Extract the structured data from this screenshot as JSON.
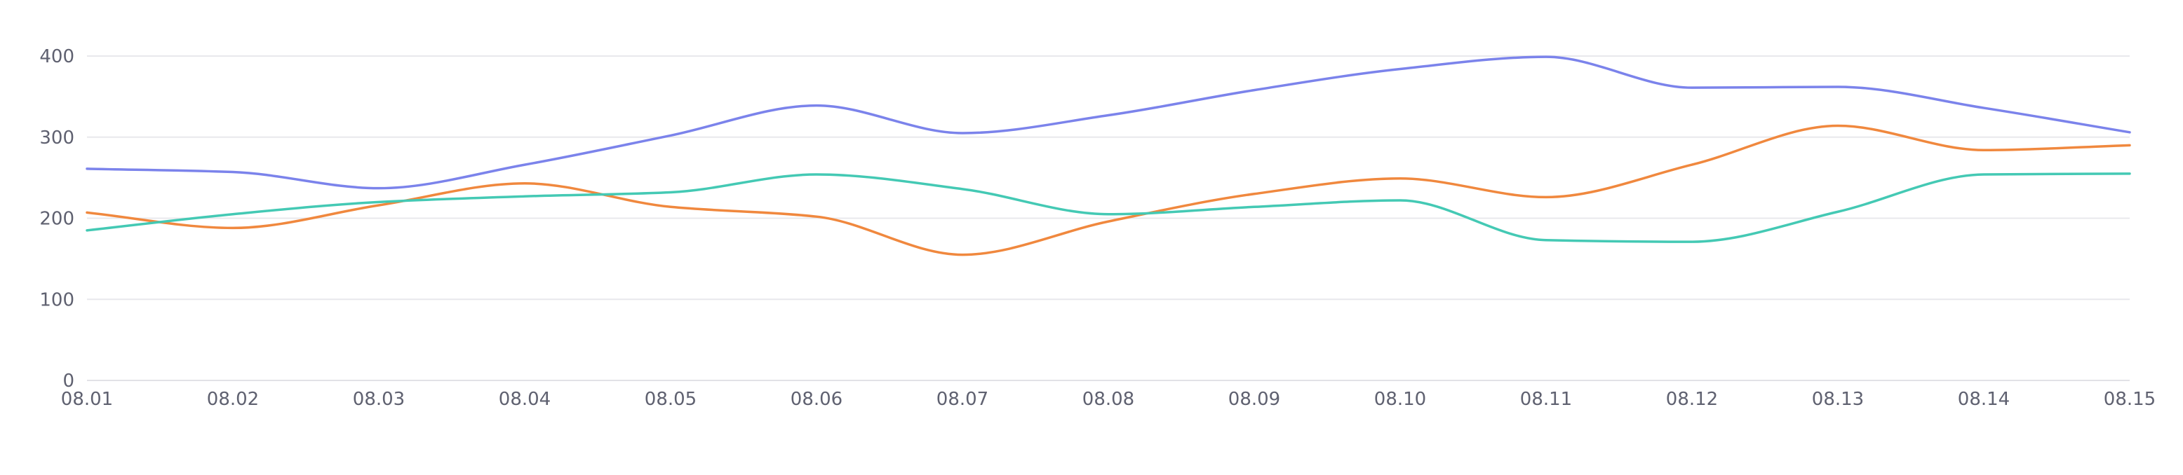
{
  "chart_data": {
    "type": "line",
    "title": "",
    "xlabel": "",
    "ylabel": "",
    "categories": [
      "08.01",
      "08.02",
      "08.03",
      "08.04",
      "08.05",
      "08.06",
      "08.07",
      "08.08",
      "08.09",
      "08.10",
      "08.11",
      "08.12",
      "08.13",
      "08.14",
      "08.15"
    ],
    "ylim": [
      0,
      400
    ],
    "yticks": [
      0,
      100,
      200,
      300,
      400
    ],
    "grid": true,
    "smooth": true,
    "series": [
      {
        "color": "#7b83eb",
        "values": [
          261,
          257,
          237,
          266,
          302,
          339,
          305,
          327,
          358,
          384,
          399,
          361,
          362,
          336,
          306
        ]
      },
      {
        "color": "#f0883e",
        "values": [
          207,
          188,
          216,
          243,
          214,
          202,
          155,
          196,
          230,
          249,
          226,
          266,
          314,
          284,
          290
        ]
      },
      {
        "color": "#44c9b4",
        "values": [
          185,
          205,
          220,
          227,
          232,
          254,
          236,
          205,
          214,
          222,
          173,
          171,
          208,
          254,
          255
        ]
      }
    ]
  }
}
